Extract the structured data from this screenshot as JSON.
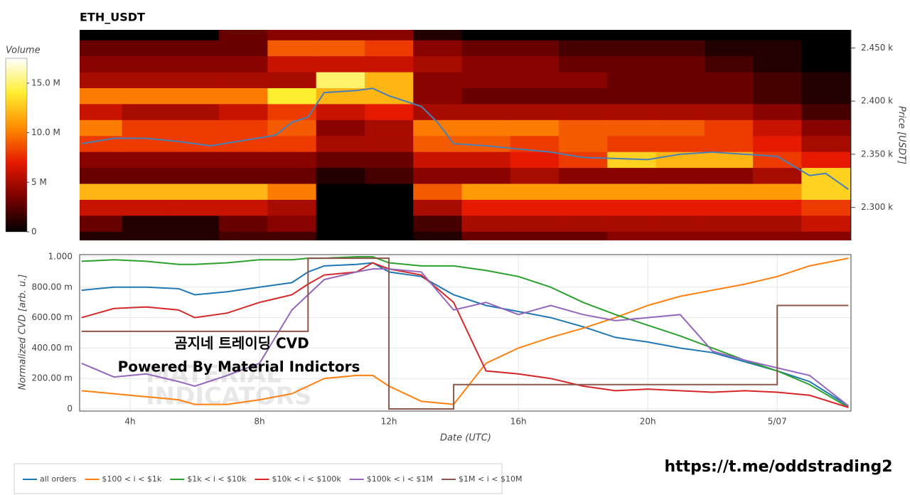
{
  "chart_data": [
    {
      "type": "heatmap",
      "title": "ETH_USDT",
      "ylabel": "Price [USDT]",
      "colorbar_title": "Volume",
      "x": [
        3,
        4.5,
        6,
        7.5,
        9,
        10.5,
        12,
        13.5,
        15,
        16.5,
        18,
        19.5,
        21,
        22.5,
        24,
        25.5
      ],
      "y": [
        2270,
        2285,
        2300,
        2315,
        2330,
        2345,
        2360,
        2375,
        2390,
        2405,
        2420,
        2435,
        2450,
        2465
      ],
      "z": [
        [
          1,
          1,
          1,
          2,
          2,
          0,
          0,
          1,
          3,
          3,
          3,
          4,
          4,
          4,
          4,
          4
        ],
        [
          3,
          1,
          1,
          3,
          4,
          0,
          0,
          2,
          5,
          5,
          5,
          5,
          5,
          5,
          5,
          6
        ],
        [
          6,
          6,
          6,
          6,
          5,
          0,
          0,
          5,
          7,
          7,
          7,
          7,
          7,
          7,
          7,
          8
        ],
        [
          12,
          12,
          12,
          12,
          10,
          0,
          0,
          9,
          11,
          11,
          11,
          11,
          11,
          11,
          11,
          13
        ],
        [
          3,
          3,
          3,
          3,
          3,
          1,
          2,
          4,
          4,
          5,
          4,
          4,
          4,
          4,
          5,
          13
        ],
        [
          4,
          4,
          4,
          4,
          4,
          3,
          3,
          6,
          6,
          7,
          8,
          13,
          12,
          12,
          8,
          7
        ],
        [
          8,
          8,
          8,
          8,
          8,
          5,
          5,
          9,
          9,
          8,
          9,
          8,
          8,
          8,
          7,
          5
        ],
        [
          10,
          8,
          8,
          8,
          9,
          4,
          5,
          10,
          10,
          10,
          9,
          9,
          9,
          8,
          6,
          4
        ],
        [
          6,
          5,
          5,
          6,
          8,
          6,
          7,
          5,
          5,
          5,
          5,
          5,
          5,
          5,
          4,
          2
        ],
        [
          10,
          10,
          10,
          10,
          14,
          12,
          12,
          4,
          3,
          3,
          3,
          3,
          3,
          3,
          2,
          1
        ],
        [
          5,
          5,
          5,
          5,
          5,
          15,
          12,
          4,
          4,
          4,
          4,
          3,
          3,
          3,
          2,
          1
        ],
        [
          4,
          4,
          4,
          4,
          6,
          6,
          6,
          5,
          4,
          4,
          3,
          3,
          3,
          2,
          1,
          0
        ],
        [
          3,
          3,
          3,
          3,
          9,
          9,
          8,
          4,
          3,
          3,
          2,
          2,
          2,
          1,
          1,
          0
        ],
        [
          0,
          0,
          0,
          3,
          4,
          4,
          4,
          1,
          0,
          0,
          0,
          0,
          0,
          0,
          0,
          0
        ]
      ],
      "colorscale": [
        "#000000",
        "#7a0000",
        "#e61a00",
        "#ff8c00",
        "#ffee30",
        "#ffffff"
      ],
      "clim": [
        0,
        17.5
      ],
      "cticks": [
        0,
        {
          "value": 5,
          "label": "5 M"
        },
        {
          "value": 10,
          "label": "10.0 M"
        },
        {
          "value": 15,
          "label": "15.0 M"
        }
      ],
      "xlim": [
        2.44,
        26.28
      ],
      "ylim": [
        2269,
        2467
      ],
      "yticks": [
        {
          "value": 2300,
          "label": "2.300 k"
        },
        {
          "value": 2350,
          "label": "2.350 k"
        },
        {
          "value": 2400,
          "label": "2.400 k"
        },
        {
          "value": 2450,
          "label": "2.450 k"
        }
      ],
      "overlay": {
        "color": "#4a7fb5",
        "x": [
          2.5,
          3.5,
          4.5,
          5.5,
          6.5,
          7.5,
          8.5,
          9,
          9.5,
          10,
          11,
          11.5,
          12,
          13,
          13.5,
          14,
          15,
          16,
          17,
          18,
          19,
          20,
          21,
          22,
          23,
          24,
          25,
          25.5,
          26.2
        ],
        "values": [
          2360,
          2365,
          2365,
          2362,
          2358,
          2363,
          2368,
          2380,
          2385,
          2408,
          2410,
          2412,
          2405,
          2395,
          2380,
          2360,
          2358,
          2355,
          2352,
          2347,
          2346,
          2345,
          2350,
          2352,
          2350,
          2348,
          2330,
          2332,
          2317
        ]
      }
    },
    {
      "type": "line",
      "xlabel": "Date (UTC)",
      "ylabel": "Normalized CVD [arb. u.]",
      "x": [
        2.5,
        3.5,
        4.5,
        5.5,
        6,
        7,
        8,
        9,
        9.5,
        10,
        11,
        11.5,
        12,
        13,
        14,
        15,
        16,
        17,
        18,
        19,
        20,
        21,
        22,
        23,
        24,
        25,
        26.2
      ],
      "series": [
        {
          "name": "all orders",
          "color": "#1f77b4",
          "values": [
            0.78,
            0.8,
            0.8,
            0.79,
            0.75,
            0.77,
            0.8,
            0.83,
            0.9,
            0.94,
            0.95,
            0.96,
            0.9,
            0.87,
            0.75,
            0.68,
            0.64,
            0.6,
            0.54,
            0.47,
            0.44,
            0.4,
            0.37,
            0.31,
            0.25,
            0.18,
            0.02
          ]
        },
        {
          "name": "$100 < i < $1k",
          "color": "#ff7f0e",
          "values": [
            0.12,
            0.1,
            0.08,
            0.06,
            0.03,
            0.03,
            0.06,
            0.1,
            0.15,
            0.2,
            0.22,
            0.22,
            0.15,
            0.05,
            0.03,
            0.3,
            0.4,
            0.47,
            0.53,
            0.6,
            0.68,
            0.74,
            0.78,
            0.82,
            0.87,
            0.94,
            0.99
          ]
        },
        {
          "name": "$1k < i < $10k",
          "color": "#2ca02c",
          "values": [
            0.97,
            0.98,
            0.97,
            0.95,
            0.95,
            0.96,
            0.98,
            0.98,
            0.99,
            0.99,
            1.0,
            1.0,
            0.96,
            0.94,
            0.94,
            0.91,
            0.87,
            0.8,
            0.7,
            0.62,
            0.55,
            0.48,
            0.4,
            0.32,
            0.25,
            0.16,
            0.01
          ]
        },
        {
          "name": "$10k < i < $100k",
          "color": "#d62728",
          "values": [
            0.6,
            0.66,
            0.67,
            0.65,
            0.6,
            0.63,
            0.7,
            0.75,
            0.82,
            0.88,
            0.9,
            0.96,
            0.92,
            0.88,
            0.7,
            0.25,
            0.23,
            0.2,
            0.15,
            0.12,
            0.13,
            0.12,
            0.11,
            0.12,
            0.11,
            0.09,
            0.01
          ]
        },
        {
          "name": "$100k < i < $1M",
          "color": "#9467bd",
          "values": [
            0.3,
            0.21,
            0.23,
            0.18,
            0.15,
            0.22,
            0.3,
            0.65,
            0.75,
            0.85,
            0.9,
            0.92,
            0.92,
            0.9,
            0.65,
            0.7,
            0.62,
            0.68,
            0.62,
            0.58,
            0.6,
            0.62,
            0.38,
            0.32,
            0.27,
            0.22,
            0.02
          ]
        },
        {
          "name": "$1M < i < $10M",
          "color": "#8c564b",
          "shape": "hv",
          "values": [
            0.51,
            0.51,
            0.51,
            0.51,
            0.51,
            0.51,
            0.51,
            0.51,
            0.99,
            0.99,
            0.99,
            0.99,
            0.0,
            0.0,
            0.16,
            0.16,
            0.16,
            0.16,
            0.16,
            0.16,
            0.16,
            0.16,
            0.16,
            0.16,
            0.68,
            0.68,
            0.68
          ]
        }
      ],
      "xlim": [
        2.44,
        26.28
      ],
      "xticks": [
        {
          "value": 4,
          "label": "4h"
        },
        {
          "value": 8,
          "label": "8h"
        },
        {
          "value": 12,
          "label": "12h"
        },
        {
          "value": 16,
          "label": "16h"
        },
        {
          "value": 20,
          "label": "20h"
        },
        {
          "value": 24,
          "label": "5/07"
        }
      ],
      "ylim": [
        -0.014,
        1.014
      ],
      "yticks": [
        0,
        {
          "value": 0.2,
          "label": "200.00 m"
        },
        {
          "value": 0.4,
          "label": "400.00 m"
        },
        {
          "value": 0.6,
          "label": "600.00 m"
        },
        {
          "value": 0.8,
          "label": "800.00 m"
        },
        {
          "value": 1,
          "label": "1.000"
        }
      ],
      "grid": true,
      "legend": "bottom-left",
      "annotations": [
        "곰지네 트레이딩 CVD",
        "Powered By Material Indictors"
      ],
      "watermark": [
        "MATERIAL",
        "INDICATORS"
      ]
    }
  ],
  "footer_link": "https://t.me/oddstrading2"
}
